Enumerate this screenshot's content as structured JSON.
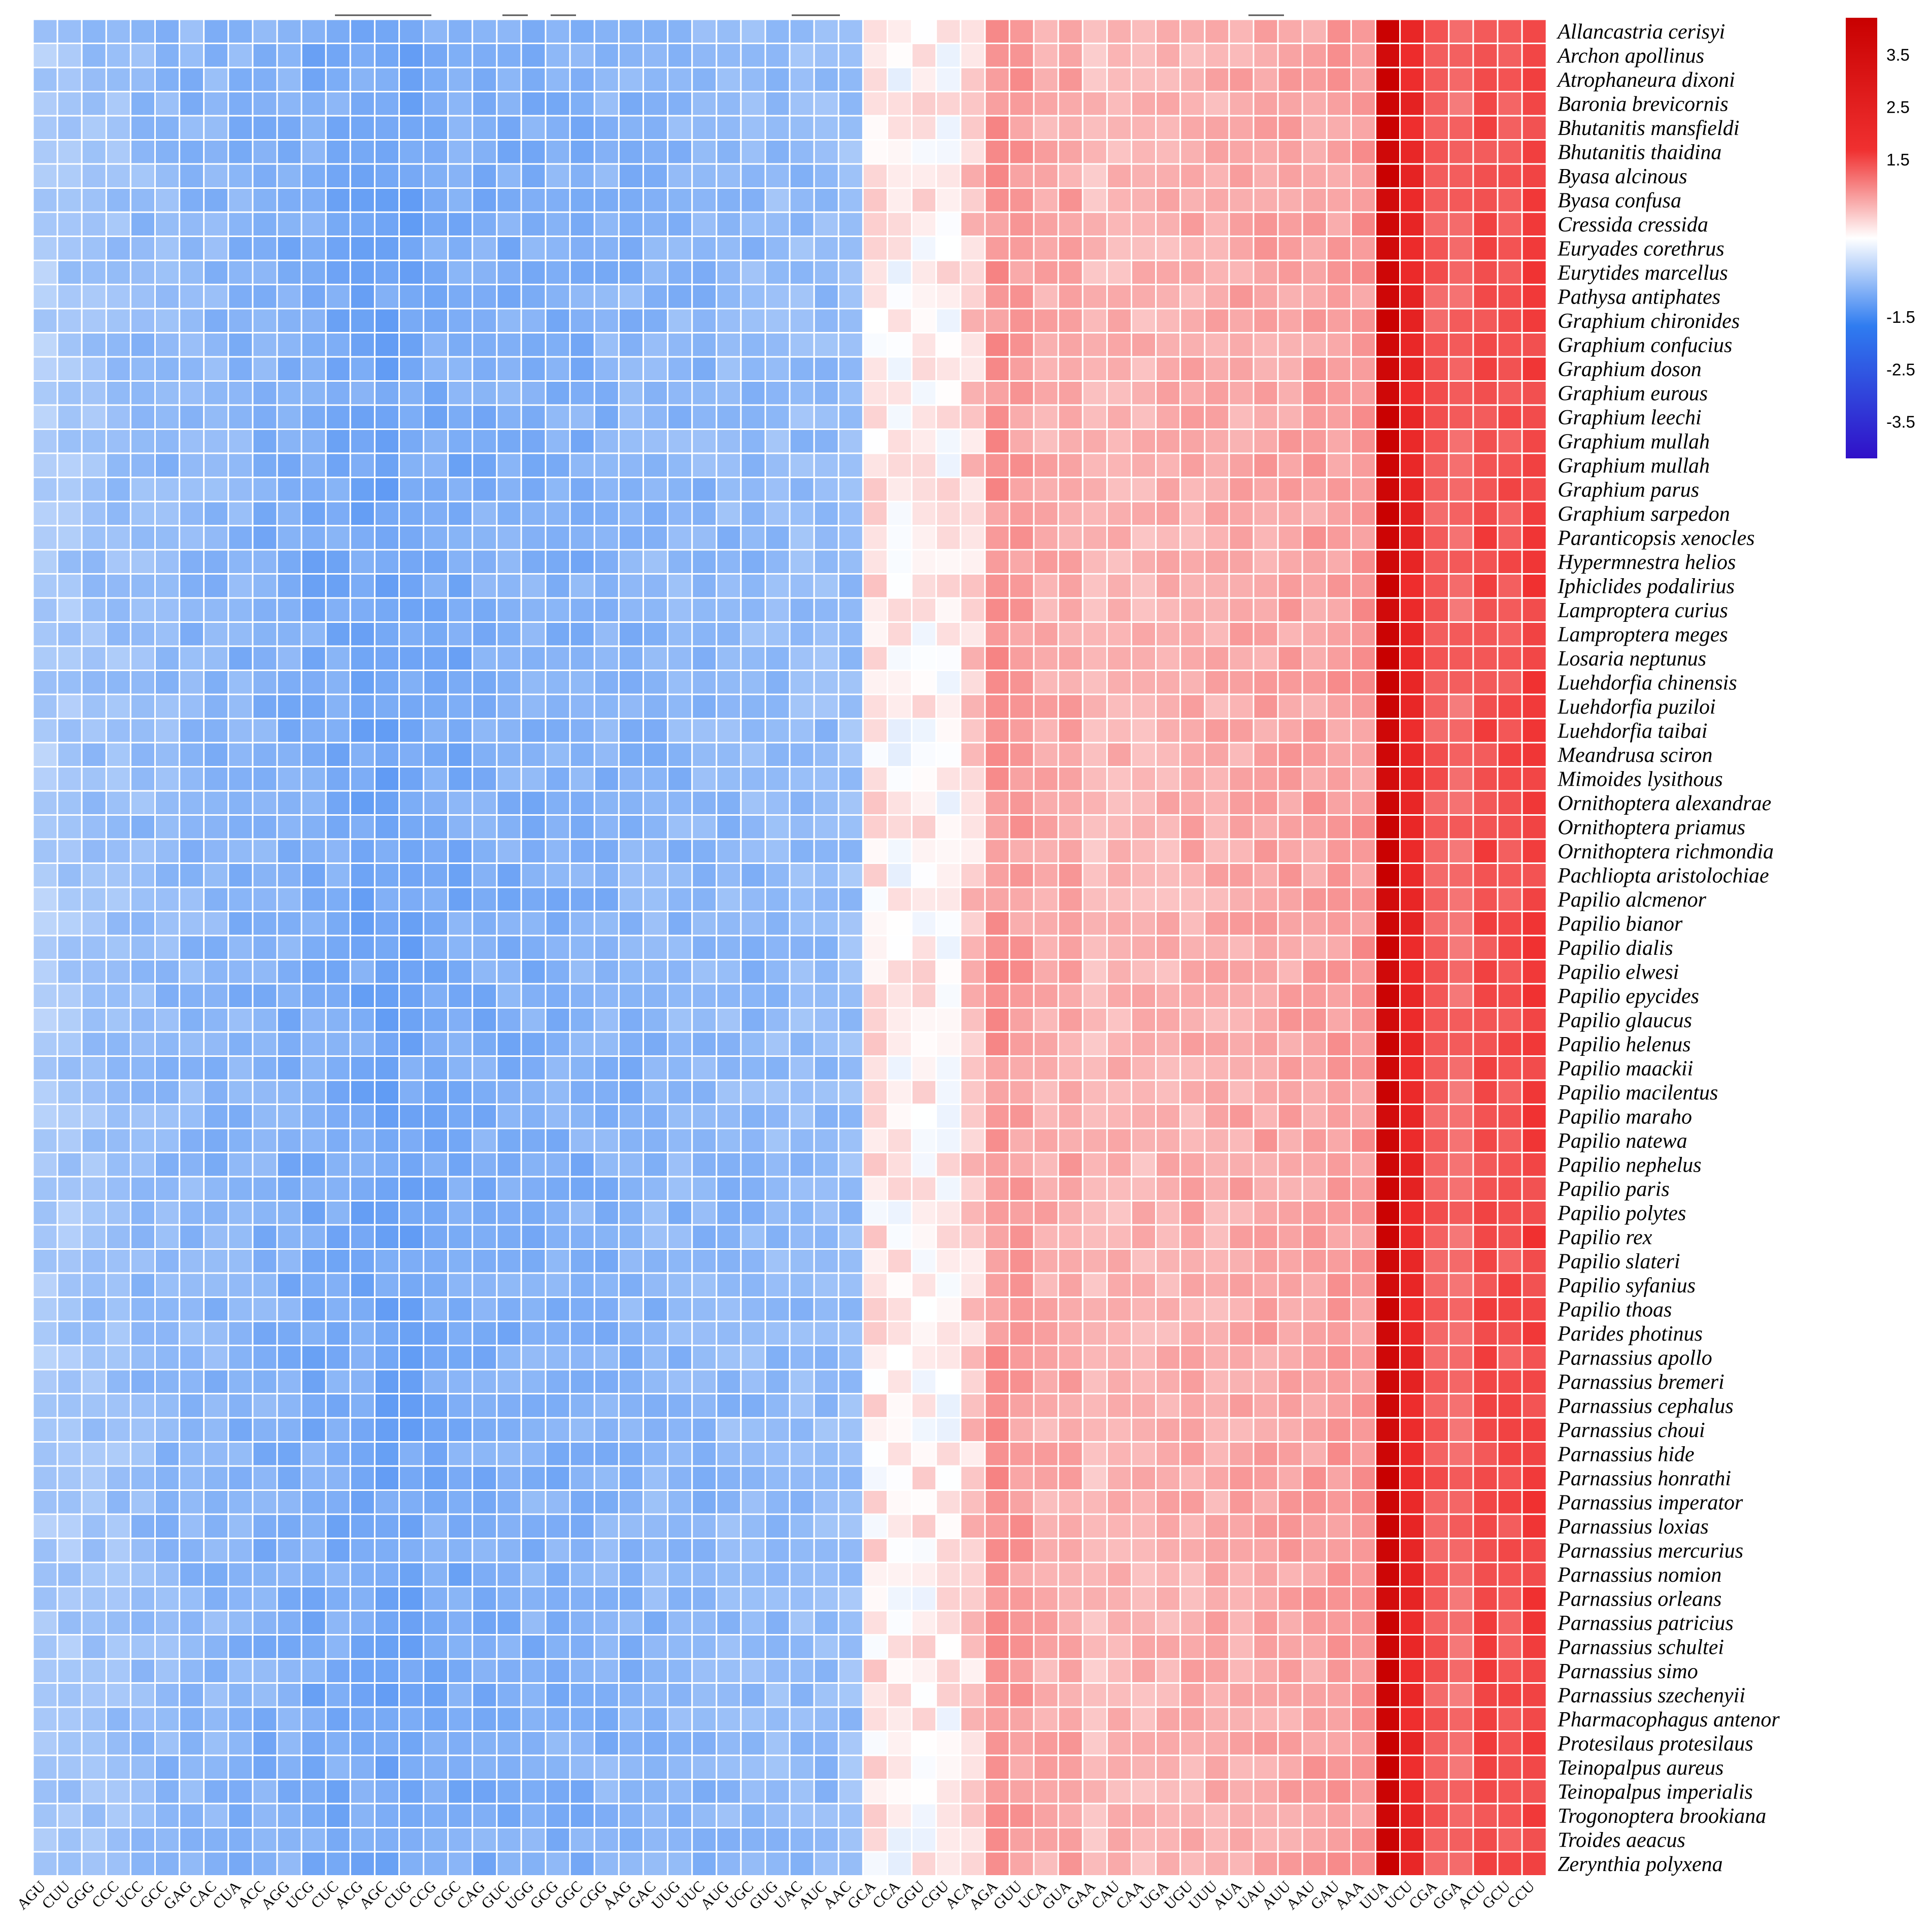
{
  "chart_data": {
    "type": "heatmap",
    "title": "",
    "xlabel": "",
    "ylabel": "",
    "rows": [
      "Allancastria cerisyi",
      "Archon apollinus",
      "Atrophaneura dixoni",
      "Baronia brevicornis",
      "Bhutanitis mansfieldi",
      "Bhutanitis thaidina",
      "Byasa alcinous",
      "Byasa confusa",
      "Cressida cressida",
      "Euryades corethrus",
      "Eurytides marcellus",
      "Pathysa antiphates",
      "Graphium chironides",
      "Graphium confucius",
      "Graphium doson",
      "Graphium eurous",
      "Graphium leechi",
      "Graphium mullah",
      "Graphium mullah",
      "Graphium parus",
      "Graphium sarpedon",
      "Paranticopsis xenocles",
      "Hypermnestra helios",
      "Iphiclides podalirius",
      "Lamproptera curius",
      "Lamproptera meges",
      "Losaria neptunus",
      "Luehdorfia chinensis",
      "Luehdorfia puziloi",
      "Luehdorfia taibai",
      "Meandrusa sciron",
      "Mimoides lysithous",
      "Ornithoptera alexandrae",
      "Ornithoptera priamus",
      "Ornithoptera richmondia",
      "Pachliopta aristolochiae",
      "Papilio alcmenor",
      "Papilio bianor",
      "Papilio dialis",
      "Papilio elwesi",
      "Papilio epycides",
      "Papilio glaucus",
      "Papilio helenus",
      "Papilio maackii",
      "Papilio macilentus",
      "Papilio maraho",
      "Papilio natewa",
      "Papilio nephelus",
      "Papilio paris",
      "Papilio polytes",
      "Papilio rex",
      "Papilio slateri",
      "Papilio syfanius",
      "Papilio thoas",
      "Parides photinus",
      "Parnassius apollo",
      "Parnassius bremeri",
      "Parnassius cephalus",
      "Parnassius choui",
      "Parnassius hide",
      "Parnassius honrathi",
      "Parnassius imperator",
      "Parnassius loxias",
      "Parnassius mercurius",
      "Parnassius nomion",
      "Parnassius orleans",
      "Parnassius patricius",
      "Parnassius schultei",
      "Parnassius simo",
      "Parnassius szechenyii",
      "Pharmacophagus antenor",
      "Protesilaus protesilaus",
      "Teinopalpus aureus",
      "Teinopalpus imperialis",
      "Trogonoptera brookiana",
      "Troides aeacus",
      "Zerynthia polyxena"
    ],
    "columns": [
      "AGU",
      "CUU",
      "GGG",
      "CCC",
      "UCC",
      "GCC",
      "GAG",
      "CAC",
      "CUA",
      "ACC",
      "AGG",
      "UCG",
      "CUC",
      "ACG",
      "AGC",
      "CUG",
      "CCG",
      "CGC",
      "CAG",
      "GUC",
      "UGG",
      "GCG",
      "GGC",
      "CGG",
      "AAG",
      "GAC",
      "UUG",
      "UUC",
      "AUG",
      "UGC",
      "GUG",
      "UAC",
      "AUC",
      "AAC",
      "GCA",
      "CCA",
      "GGU",
      "CGU",
      "ACA",
      "AGA",
      "GUU",
      "UCA",
      "GUA",
      "GAA",
      "CAU",
      "CAA",
      "UGA",
      "UGU",
      "UUU",
      "AUA",
      "UAU",
      "AUU",
      "AAU",
      "GAU",
      "AAA",
      "UUA",
      "UCU",
      "CGA",
      "GGA",
      "ACU",
      "GCU",
      "CCU"
    ],
    "column_base_values": [
      -1.0,
      -1.1,
      -1.2,
      -1.2,
      -1.3,
      -1.35,
      -1.4,
      -1.4,
      -1.45,
      -1.5,
      -1.55,
      -1.6,
      -1.6,
      -1.65,
      -1.7,
      -1.7,
      -1.6,
      -1.6,
      -1.55,
      -1.55,
      -1.5,
      -1.5,
      -1.5,
      -1.45,
      -1.45,
      -1.4,
      -1.4,
      -1.4,
      -1.35,
      -1.35,
      -1.3,
      -1.3,
      -1.3,
      -1.25,
      0.3,
      0.1,
      0.2,
      0.15,
      0.6,
      1.3,
      1.2,
      1.0,
      1.1,
      0.8,
      0.9,
      0.9,
      0.95,
      1.0,
      1.0,
      1.05,
      1.1,
      1.1,
      1.15,
      1.2,
      1.25,
      4.0,
      2.8,
      2.0,
      1.8,
      2.2,
      2.1,
      2.3
    ],
    "legend": {
      "ticks": [
        "3.5",
        "2.5",
        "1.5",
        "-1.5",
        "-2.5",
        "-3.5"
      ],
      "tick_values": [
        3.5,
        2.5,
        1.5,
        -1.5,
        -2.5,
        -3.5
      ],
      "range": [
        -4.2,
        4.2
      ],
      "colors": {
        "low": "#3010c8",
        "mid_low": "#2f7cf0",
        "mid": "#ffffff",
        "mid_high": "#f03030",
        "high": "#c80000"
      },
      "placement": "top-right"
    }
  }
}
